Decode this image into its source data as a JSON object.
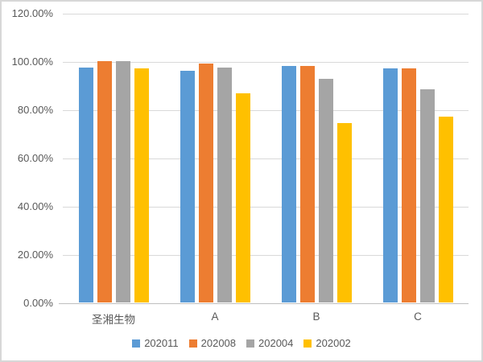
{
  "chart": {
    "background": "#ffffff",
    "frame_border_color": "#d7d7d7",
    "text_color": "#595959",
    "gridline_color": "#d9d9d9",
    "axis_line_color": "#bfbfbf"
  },
  "chart_data": {
    "type": "bar",
    "title": "",
    "xlabel": "",
    "ylabel": "",
    "categories": [
      "圣湘生物",
      "A",
      "B",
      "C"
    ],
    "series": [
      {
        "name": "202011",
        "color": "#5B9BD5",
        "values": [
          97.3,
          96.1,
          98.0,
          97.0
        ]
      },
      {
        "name": "202008",
        "color": "#ED7D31",
        "values": [
          100.0,
          99.0,
          98.0,
          97.0
        ]
      },
      {
        "name": "202004",
        "color": "#A5A5A5",
        "values": [
          100.0,
          97.3,
          92.8,
          88.3
        ]
      },
      {
        "name": "202002",
        "color": "#FFC000",
        "values": [
          96.9,
          86.5,
          74.2,
          77.0
        ]
      }
    ],
    "ylim": [
      0,
      120
    ],
    "ytick_values": [
      0,
      20,
      40,
      60,
      80,
      100,
      120
    ],
    "ytick_labels": [
      "0.00%",
      "20.00%",
      "40.00%",
      "60.00%",
      "80.00%",
      "100.00%",
      "120.00%"
    ],
    "grid": true,
    "legend_position": "bottom"
  }
}
